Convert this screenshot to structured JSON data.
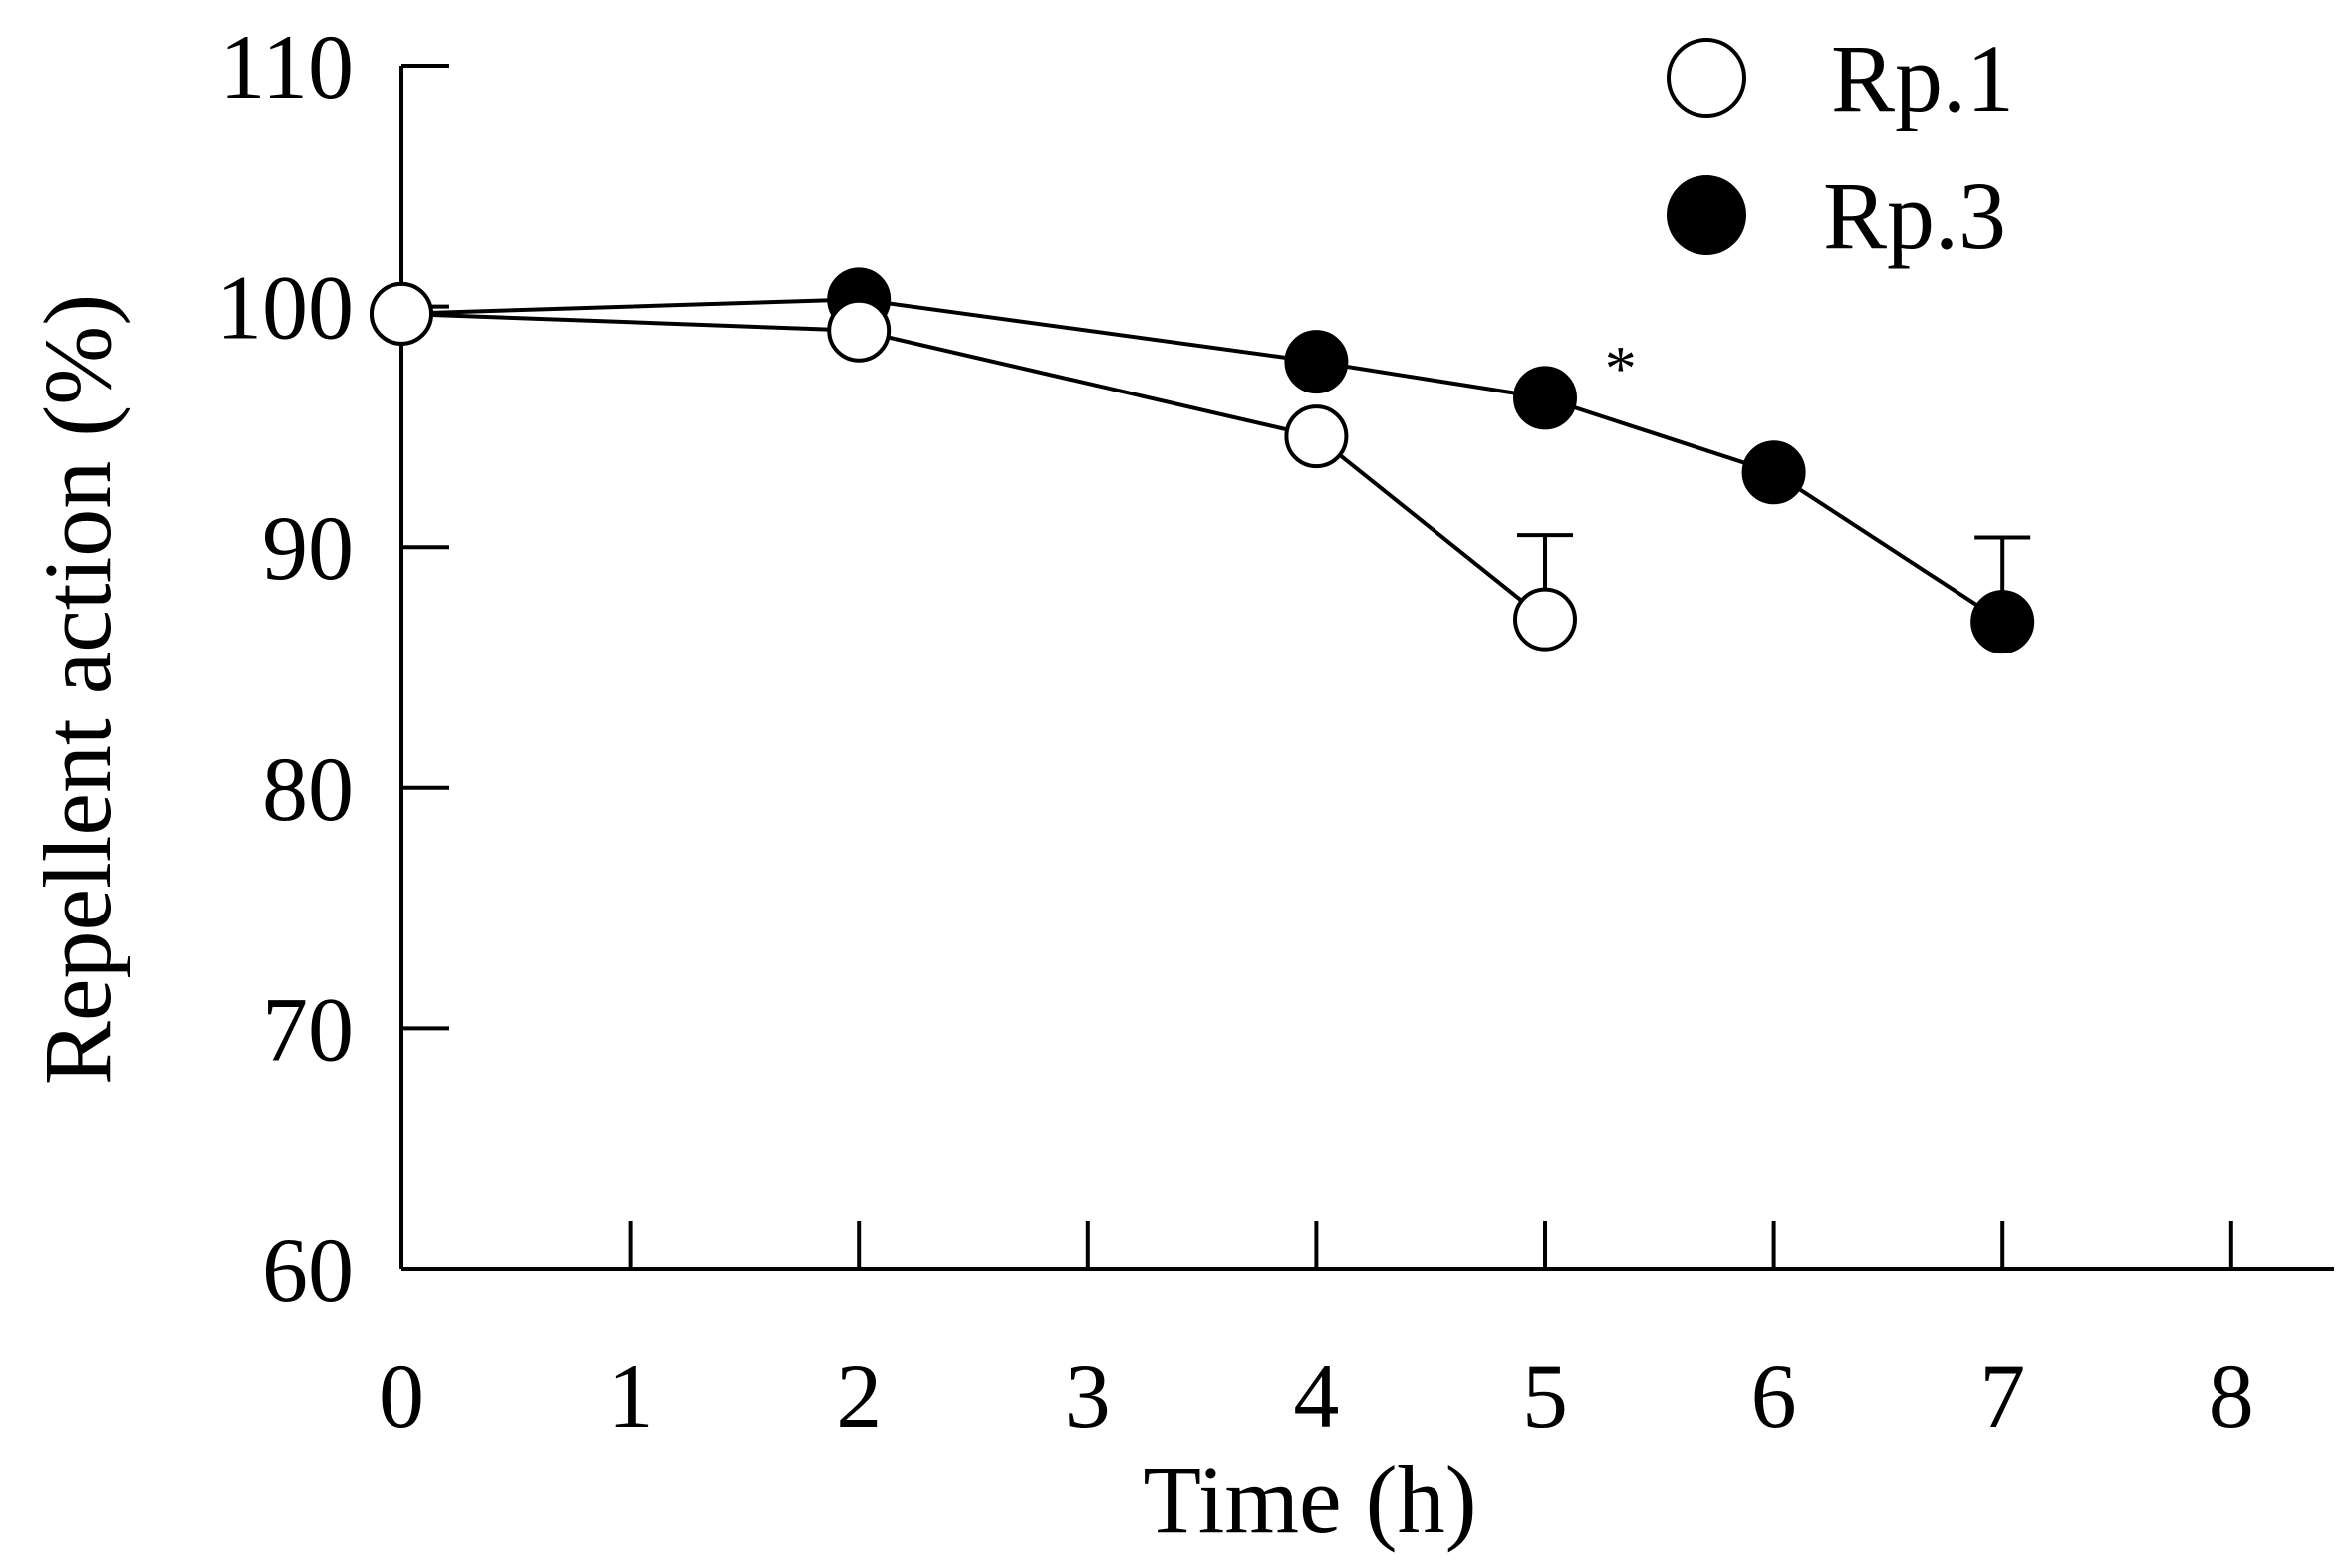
{
  "chart_data": {
    "type": "line",
    "title": "",
    "xlabel": "Time (h)",
    "ylabel": "Repellent action (%)",
    "xlim": [
      0,
      8.45
    ],
    "ylim": [
      60,
      110
    ],
    "x_ticks": [
      0,
      1,
      2,
      3,
      4,
      5,
      6,
      7,
      8
    ],
    "x_tick_labels": [
      "0",
      "1",
      "2",
      "3",
      "4",
      "5",
      "6",
      "7",
      "8"
    ],
    "y_ticks": [
      60,
      70,
      80,
      90,
      100,
      110
    ],
    "y_tick_labels": [
      "60",
      "70",
      "80",
      "90",
      "100",
      "110"
    ],
    "grid": false,
    "legend_position": "top-right",
    "series": [
      {
        "name": "Rp.1",
        "marker": "open-circle",
        "x": [
          0,
          2,
          4,
          5
        ],
        "y": [
          99.7,
          99.0,
          94.6,
          87.0
        ],
        "error_bars": [
          {
            "x": 5,
            "upper": 90.5
          }
        ]
      },
      {
        "name": "Rp.3",
        "marker": "filled-circle",
        "x": [
          0,
          2,
          4,
          5,
          6,
          7
        ],
        "y": [
          99.7,
          100.3,
          97.7,
          96.2,
          93.1,
          86.9
        ],
        "error_bars": [
          {
            "x": 7,
            "upper": 90.4
          }
        ]
      }
    ],
    "annotations": [
      {
        "text": "*",
        "x": 5.33,
        "y": 97.8
      }
    ]
  },
  "colors": {
    "line": "#000000",
    "open_marker_fill": "#ffffff",
    "filled_marker_fill": "#000000"
  }
}
